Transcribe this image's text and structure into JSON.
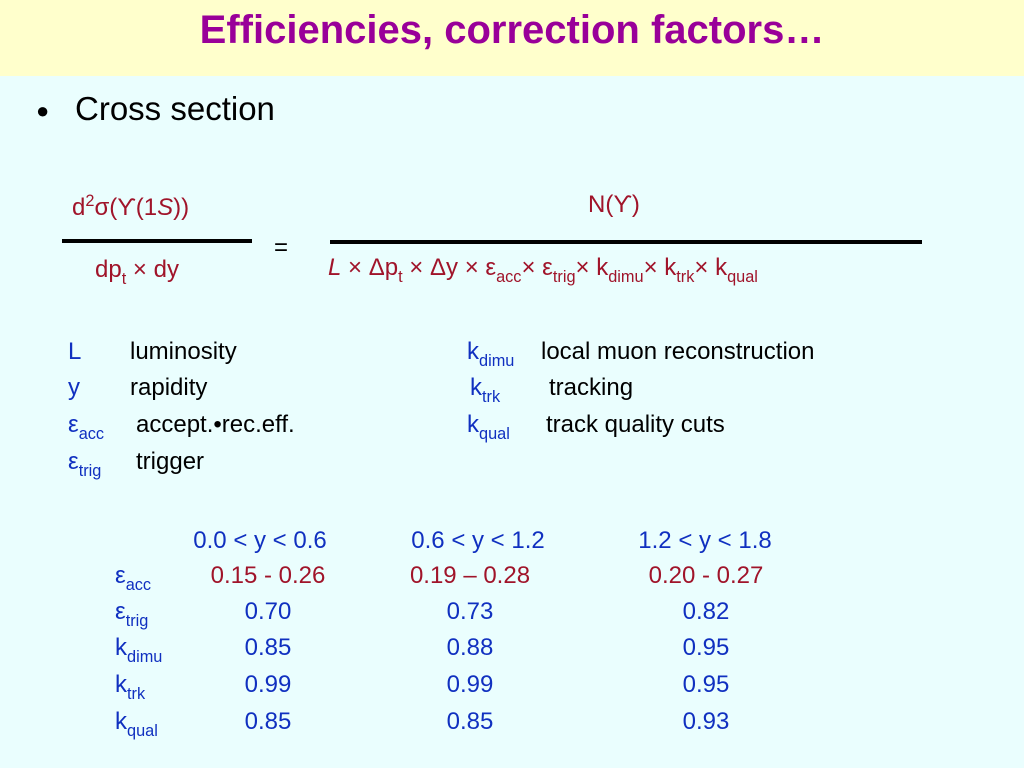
{
  "header": {
    "title": "Efficiencies, correction factors…"
  },
  "bullet": {
    "text": "Cross section"
  },
  "formula": {
    "lhs_numerator": [
      {
        "text": "d",
        "style": "normal"
      },
      {
        "text": "2",
        "style": "sup"
      },
      {
        "text": "σ(ϒ(1",
        "style": "normal"
      },
      {
        "text": "S",
        "style": "italic"
      },
      {
        "text": "))",
        "style": "normal"
      }
    ],
    "lhs_denominator": [
      {
        "text": "dp",
        "style": "normal"
      },
      {
        "text": "t",
        "style": "sub"
      },
      {
        "text": " × dy",
        "style": "normal"
      }
    ],
    "equals": "=",
    "rhs_numerator": [
      {
        "text": "N(ϒ)",
        "style": "normal"
      }
    ],
    "rhs_denominator": [
      {
        "text": "L",
        "style": "italic"
      },
      {
        "text": " × Δp",
        "style": "normal"
      },
      {
        "text": "t",
        "style": "sub"
      },
      {
        "text": " × Δy × ε",
        "style": "normal"
      },
      {
        "text": "acc",
        "style": "sub"
      },
      {
        "text": "× ε",
        "style": "normal"
      },
      {
        "text": "trig",
        "style": "sub"
      },
      {
        "text": "× k",
        "style": "normal"
      },
      {
        "text": "dimu",
        "style": "sub"
      },
      {
        "text": "× k",
        "style": "normal"
      },
      {
        "text": "trk",
        "style": "sub"
      },
      {
        "text": "× k",
        "style": "normal"
      },
      {
        "text": "qual",
        "style": "sub"
      }
    ]
  },
  "definitions": {
    "left": [
      {
        "symbol": [
          {
            "text": "L",
            "style": "normal"
          }
        ],
        "text": "luminosity"
      },
      {
        "symbol": [
          {
            "text": "y",
            "style": "normal"
          }
        ],
        "text": "rapidity"
      },
      {
        "symbol": [
          {
            "text": "ε",
            "style": "normal"
          },
          {
            "text": "acc",
            "style": "sub"
          }
        ],
        "text": "accept.•rec.eff."
      },
      {
        "symbol": [
          {
            "text": "ε",
            "style": "normal"
          },
          {
            "text": "trig",
            "style": "sub"
          }
        ],
        "text": "trigger"
      }
    ],
    "right": [
      {
        "symbol": [
          {
            "text": "k",
            "style": "normal"
          },
          {
            "text": "dimu",
            "style": "sub"
          }
        ],
        "text": "local muon reconstruction"
      },
      {
        "symbol": [
          {
            "text": "k",
            "style": "normal"
          },
          {
            "text": "trk",
            "style": "sub"
          }
        ],
        "text": "tracking"
      },
      {
        "symbol": [
          {
            "text": "k",
            "style": "normal"
          },
          {
            "text": "qual",
            "style": "sub"
          }
        ],
        "text": "track quality cuts"
      }
    ]
  },
  "table": {
    "columns": [
      "0.0 < y < 0.6",
      "0.6 < y < 1.2",
      "1.2 < y < 1.8"
    ],
    "rows": [
      {
        "symbol": [
          {
            "text": "ε",
            "style": "normal"
          },
          {
            "text": "acc",
            "style": "sub"
          }
        ],
        "values": [
          "0.15 - 0.26",
          "0.19 – 0.28",
          "0.20 - 0.27"
        ],
        "color": "#a0142a"
      },
      {
        "symbol": [
          {
            "text": "ε",
            "style": "normal"
          },
          {
            "text": "trig",
            "style": "sub"
          }
        ],
        "values": [
          "0.70",
          "0.73",
          "0.82"
        ],
        "color": "#1030c0"
      },
      {
        "symbol": [
          {
            "text": "k",
            "style": "normal"
          },
          {
            "text": "dimu",
            "style": "sub"
          }
        ],
        "values": [
          "0.85",
          "0.88",
          "0.95"
        ],
        "color": "#1030c0"
      },
      {
        "symbol": [
          {
            "text": "k",
            "style": "normal"
          },
          {
            "text": "trk",
            "style": "sub"
          }
        ],
        "values": [
          "0.99",
          "0.99",
          "0.95"
        ],
        "color": "#1030c0"
      },
      {
        "symbol": [
          {
            "text": "k",
            "style": "normal"
          },
          {
            "text": "qual",
            "style": "sub"
          }
        ],
        "values": [
          "0.85",
          "0.85",
          "0.93"
        ],
        "color": "#1030c0"
      }
    ]
  }
}
